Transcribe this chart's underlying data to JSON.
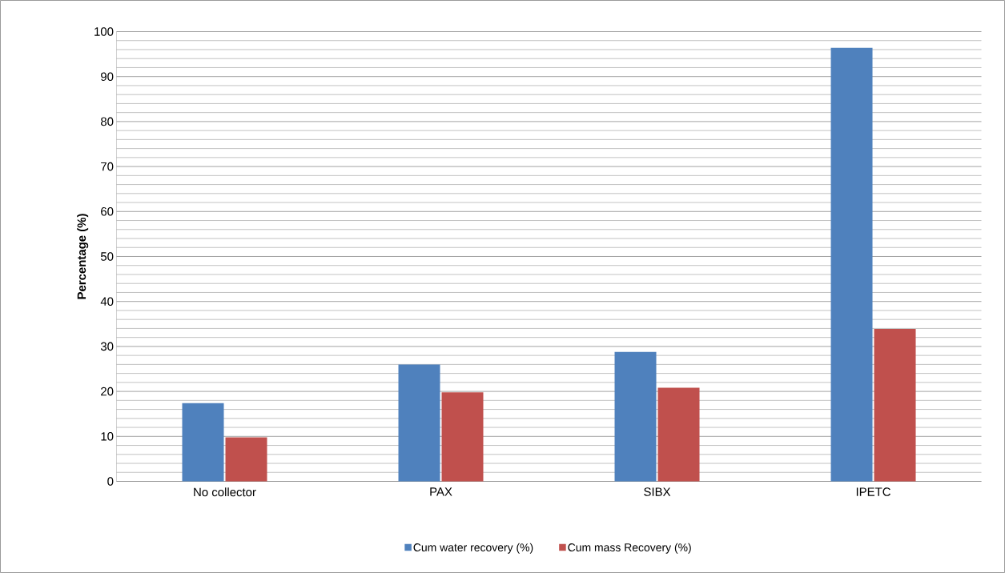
{
  "chart_data": {
    "type": "bar",
    "ylabel": "Percentage (%)",
    "categories": [
      "No collector",
      "PAX",
      "SIBX",
      "IPETC"
    ],
    "series": [
      {
        "name": "Cum water recovery (%)",
        "color": "#4f81bd",
        "values": [
          17.4,
          26.0,
          28.8,
          96.4
        ]
      },
      {
        "name": "Cum mass Recovery  (%)",
        "color": "#c0504d",
        "values": [
          9.8,
          19.8,
          20.8,
          33.9
        ]
      }
    ],
    "ylim": [
      0,
      100
    ],
    "yticks": [
      0,
      10,
      20,
      30,
      40,
      50,
      60,
      70,
      80,
      90,
      100
    ],
    "grid": "y",
    "legend": "bottom"
  }
}
